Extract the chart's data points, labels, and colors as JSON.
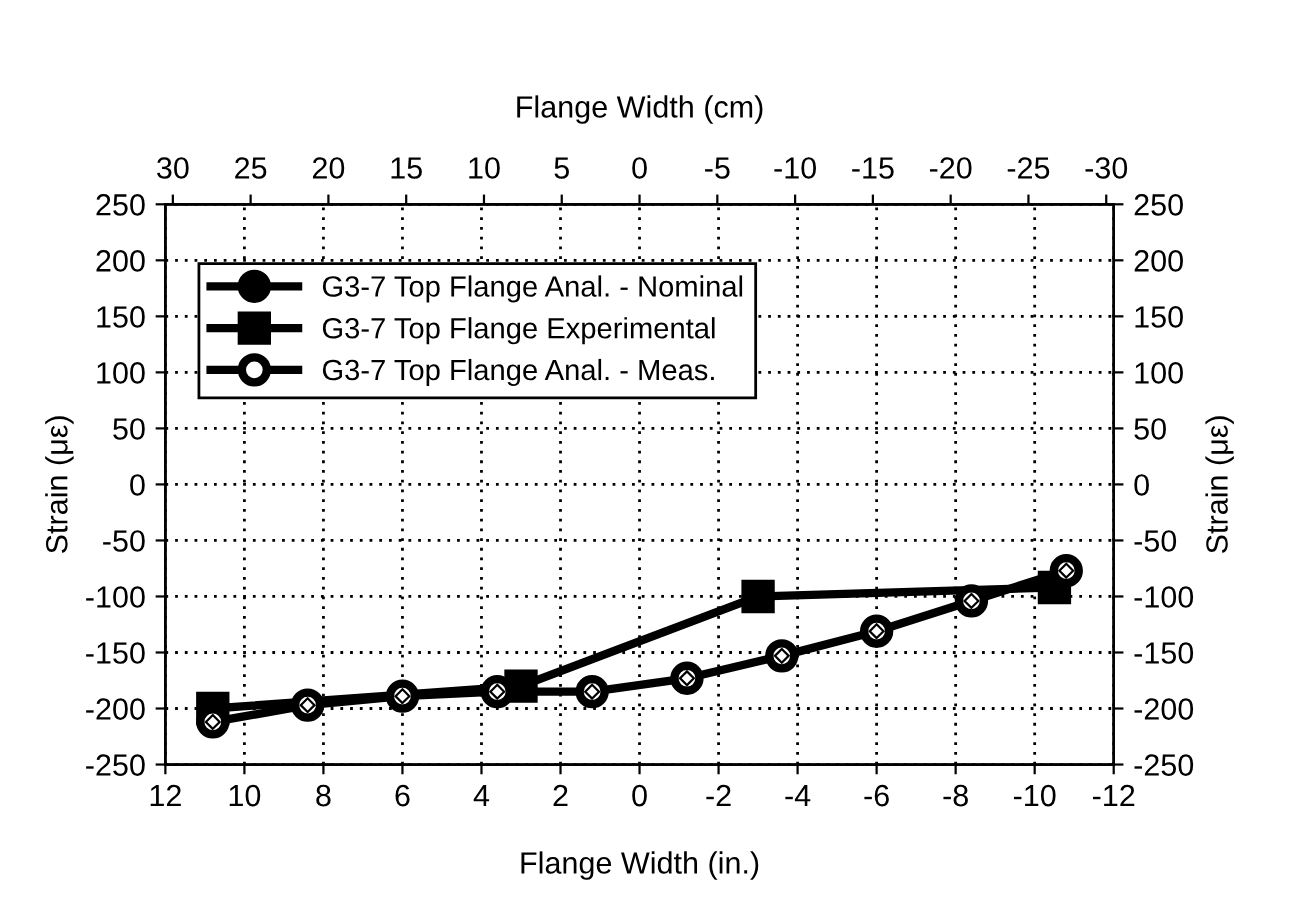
{
  "chart_data": {
    "type": "line",
    "xlabel": "Flange Width (in.)",
    "x2label": "Flange Width (cm)",
    "ylabel": "Strain (με)",
    "y2label": "Strain (με)",
    "xlim": [
      12,
      -12
    ],
    "xticks": [
      12,
      10,
      8,
      6,
      4,
      2,
      0,
      -2,
      -4,
      -6,
      -8,
      -10,
      -12
    ],
    "x2lim": [
      30.48,
      -30.48
    ],
    "x2ticks": [
      30,
      25,
      20,
      15,
      10,
      5,
      0,
      -5,
      -10,
      -15,
      -20,
      -25,
      -30
    ],
    "ylim": [
      -250,
      250
    ],
    "yticks": [
      -250,
      -200,
      -150,
      -100,
      -50,
      0,
      50,
      100,
      150,
      200,
      250
    ],
    "y2lim": [
      -250,
      250
    ],
    "y2ticks": [
      -250,
      -200,
      -150,
      -100,
      -50,
      0,
      50,
      100,
      150,
      200,
      250
    ],
    "x": [
      10.8,
      8.4,
      6.0,
      3.6,
      1.2,
      -1.2,
      -3.6,
      -6.0,
      -8.4,
      -10.8
    ],
    "grid": true,
    "legend": "top left",
    "line_style": "solid",
    "series": [
      {
        "name": "G3-7 Top Flange Anal. - Nominal",
        "color": "#000000",
        "marker": "circle",
        "values": [
          null,
          null,
          null,
          null,
          null,
          null,
          null,
          null,
          null,
          null
        ]
      },
      {
        "name": "G3-7 Top Flange Experimental",
        "color": "#000000",
        "marker": "square",
        "x": [
          10.8,
          3.0,
          -3.0,
          -10.5
        ],
        "values": [
          -200,
          -180,
          -100,
          -92
        ]
      },
      {
        "name": "G3-7 Top Flange Anal. - Meas.",
        "color": "#000000",
        "marker": "circle",
        "values": [
          -212,
          -197,
          -189,
          -185,
          -185,
          -173,
          -153,
          -131,
          -104,
          -77
        ]
      }
    ]
  }
}
